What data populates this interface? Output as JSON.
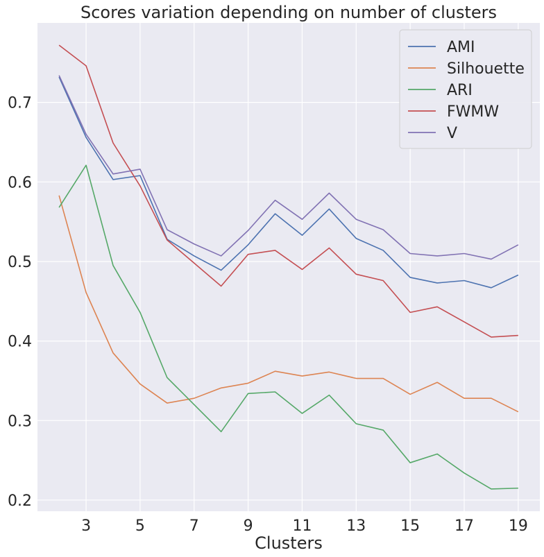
{
  "chart_data": {
    "type": "line",
    "title": "Scores variation depending on number of clusters",
    "xlabel": "Clusters",
    "ylabel": "",
    "x": [
      2,
      3,
      4,
      5,
      6,
      7,
      8,
      9,
      10,
      11,
      12,
      13,
      14,
      15,
      16,
      17,
      18,
      19
    ],
    "xticks": [
      3,
      5,
      7,
      9,
      11,
      13,
      15,
      17,
      19
    ],
    "yticks": [
      0.2,
      0.3,
      0.4,
      0.5,
      0.6,
      0.7
    ],
    "xlim": [
      1.2,
      19.8
    ],
    "ylim": [
      0.186,
      0.8
    ],
    "grid": true,
    "legend_position": "top-right",
    "series": [
      {
        "name": "AMI",
        "color": "#4c72b0",
        "values": [
          0.732,
          0.656,
          0.603,
          0.608,
          0.528,
          0.507,
          0.489,
          0.521,
          0.56,
          0.533,
          0.566,
          0.529,
          0.514,
          0.48,
          0.473,
          0.476,
          0.467,
          0.483
        ]
      },
      {
        "name": "Silhouette",
        "color": "#dd8452",
        "values": [
          0.583,
          0.461,
          0.385,
          0.346,
          0.322,
          0.328,
          0.341,
          0.347,
          0.362,
          0.356,
          0.361,
          0.353,
          0.353,
          0.333,
          0.348,
          0.328,
          0.328,
          0.311
        ]
      },
      {
        "name": "ARI",
        "color": "#55a868",
        "values": [
          0.568,
          0.621,
          0.495,
          0.436,
          0.354,
          0.32,
          0.286,
          0.334,
          0.336,
          0.309,
          0.332,
          0.296,
          0.288,
          0.247,
          0.258,
          0.234,
          0.214,
          0.215
        ]
      },
      {
        "name": "FWMW",
        "color": "#c44e52",
        "values": [
          0.772,
          0.746,
          0.649,
          0.595,
          0.527,
          0.498,
          0.469,
          0.509,
          0.514,
          0.49,
          0.517,
          0.484,
          0.476,
          0.436,
          0.443,
          0.424,
          0.405,
          0.407
        ]
      },
      {
        "name": "V",
        "color": "#8172b3",
        "values": [
          0.734,
          0.66,
          0.61,
          0.616,
          0.54,
          0.522,
          0.507,
          0.539,
          0.577,
          0.553,
          0.586,
          0.553,
          0.54,
          0.51,
          0.507,
          0.51,
          0.503,
          0.521
        ]
      }
    ]
  }
}
